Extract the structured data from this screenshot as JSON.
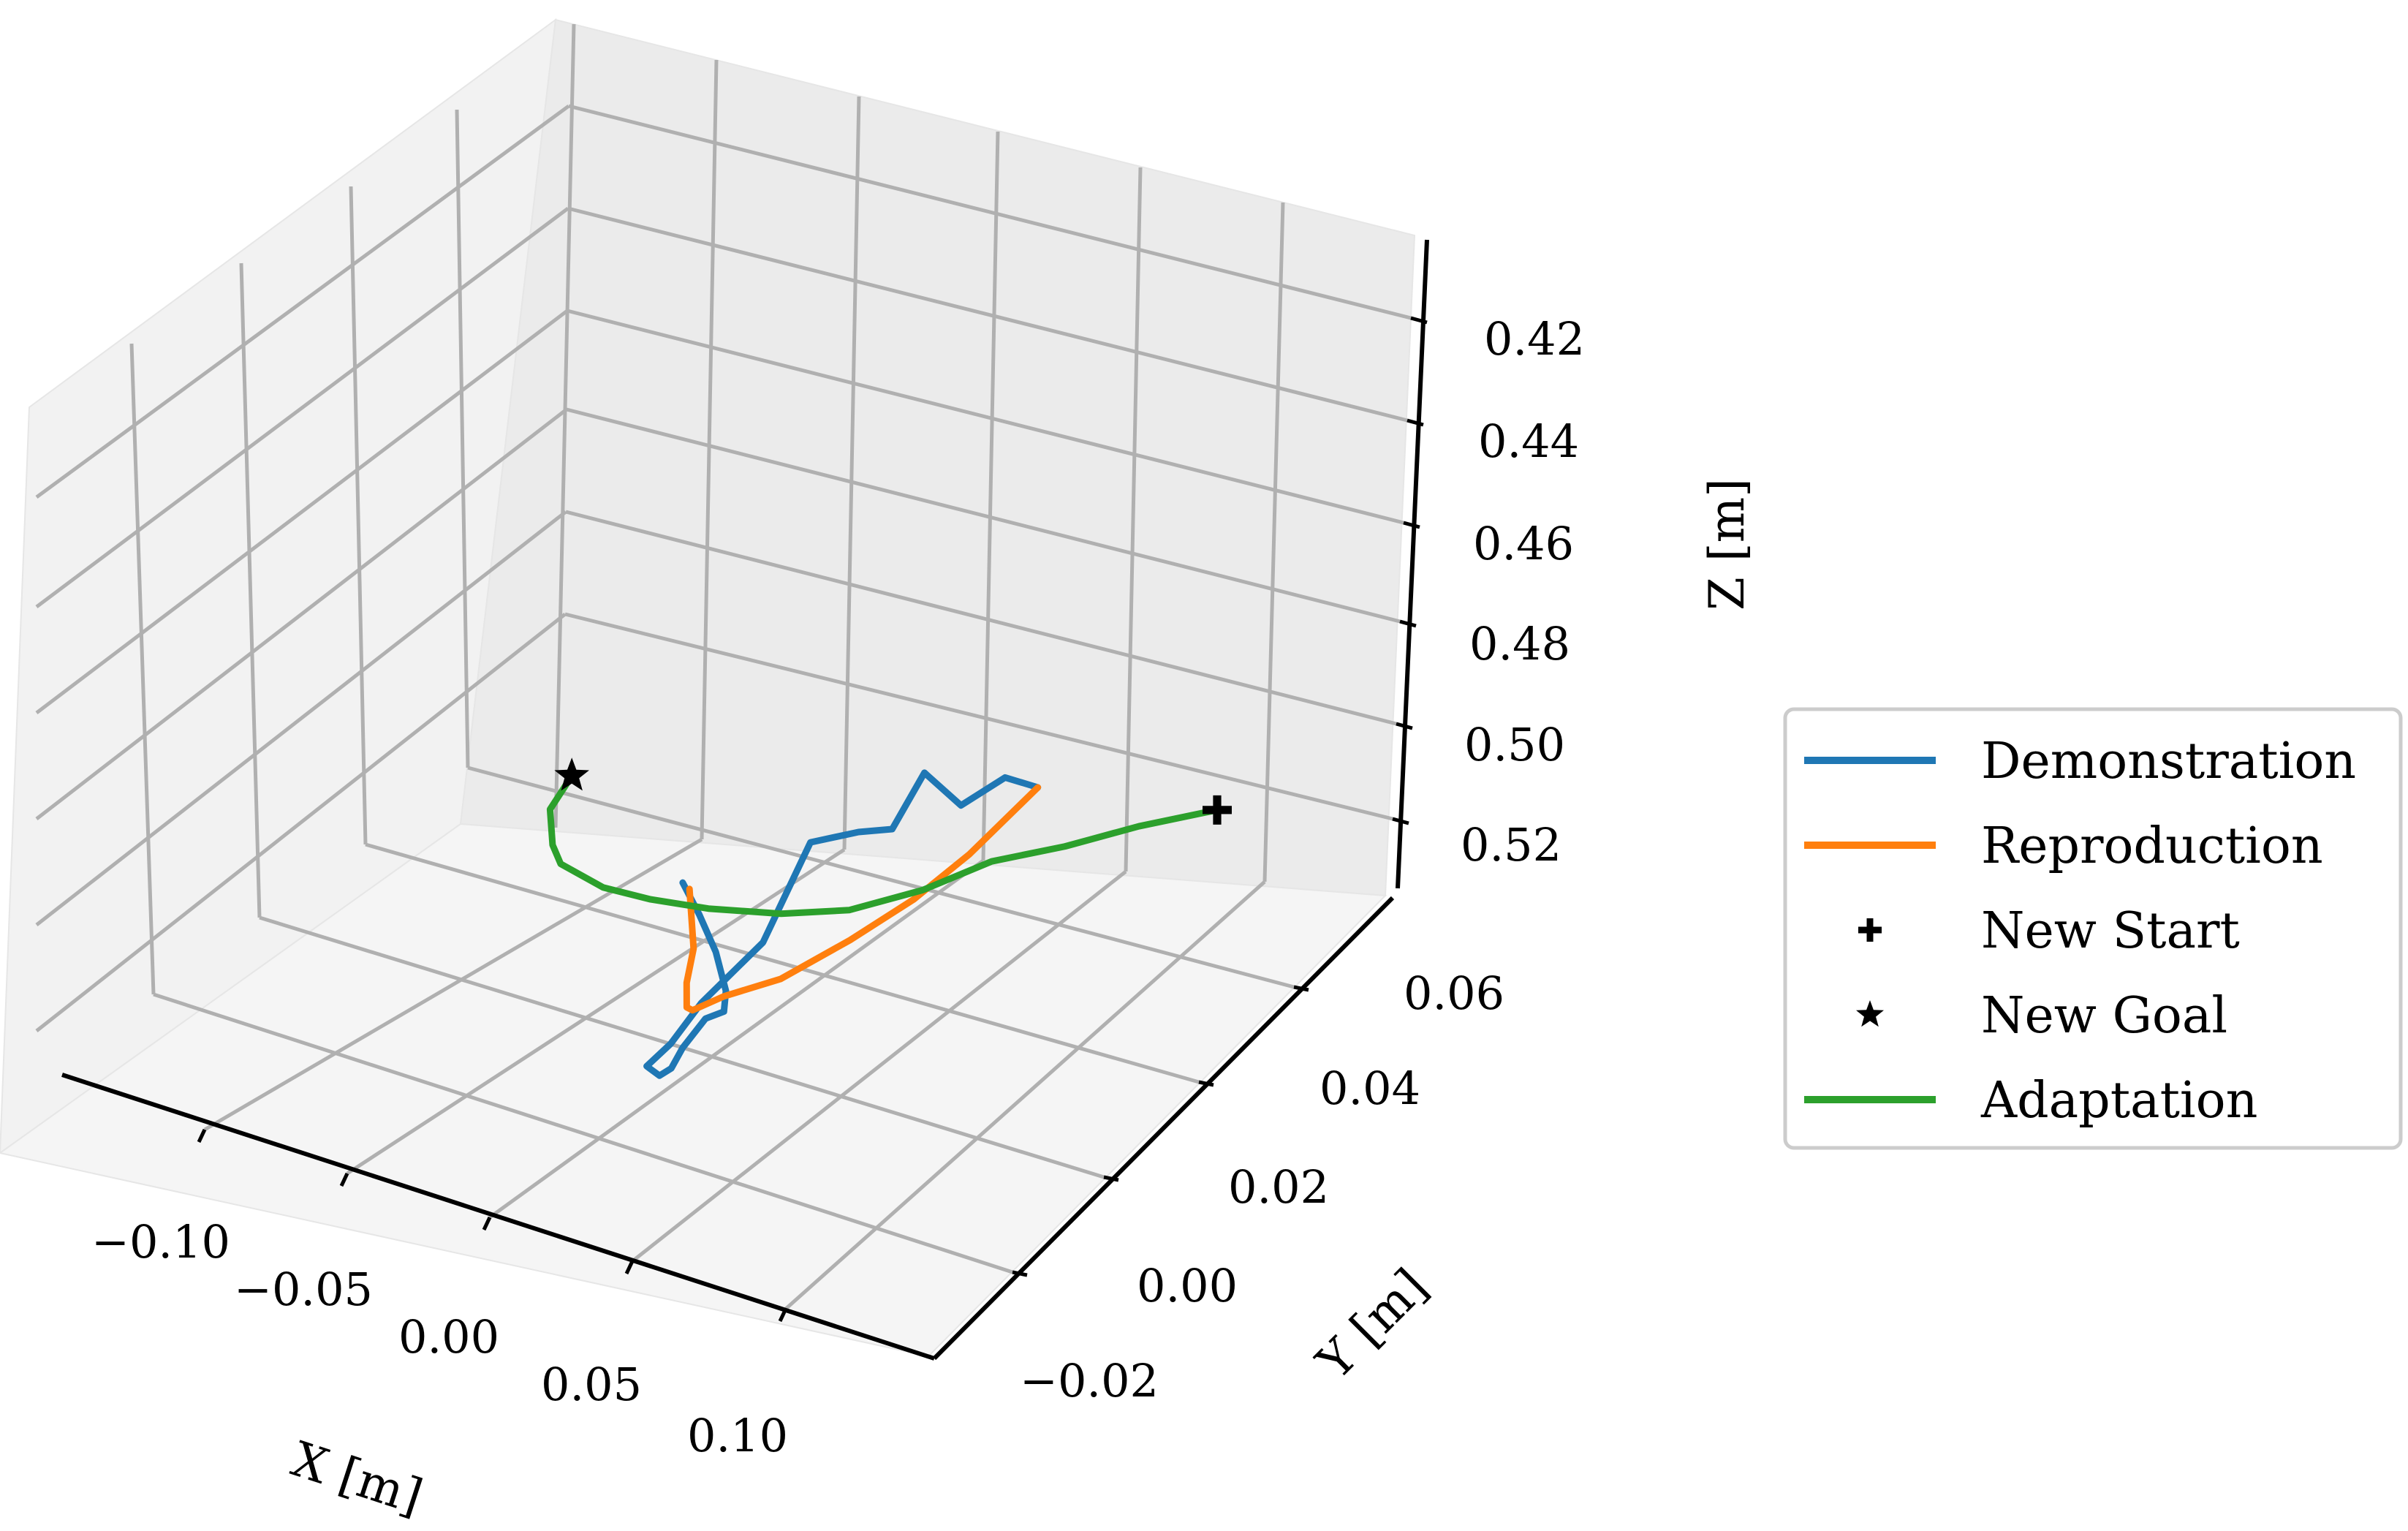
{
  "chart_data": {
    "type": "line",
    "projection": "3d",
    "title": "",
    "xlabel": "X [m]",
    "ylabel": "Y [m]",
    "zlabel": "Z [m]",
    "xlim": [
      -0.15,
      0.15
    ],
    "ylim": [
      -0.03,
      0.07
    ],
    "zlim": [
      0.53,
      0.41
    ],
    "z_axis_inverted": true,
    "x_ticks": [
      "−0.10",
      "−0.05",
      "0.00",
      "0.05",
      "0.10"
    ],
    "y_ticks": [
      "−0.02",
      "0.00",
      "0.02",
      "0.04",
      "0.06"
    ],
    "z_ticks": [
      "0.42",
      "0.44",
      "0.46",
      "0.48",
      "0.50",
      "0.52"
    ],
    "grid": true,
    "legend_position": "right",
    "series": [
      {
        "name": "Demonstration",
        "color": "#1f77b4",
        "kind": "line",
        "points": [
          [
            -0.056,
            0.016,
            0.456
          ],
          [
            -0.055,
            0.013,
            0.452
          ],
          [
            -0.054,
            0.01,
            0.447
          ],
          [
            -0.05,
            0.01,
            0.44
          ],
          [
            -0.047,
            0.012,
            0.435
          ],
          [
            -0.043,
            0.018,
            0.43
          ],
          [
            -0.03,
            0.03,
            0.418
          ],
          [
            -0.02,
            0.038,
            0.41
          ],
          [
            -0.012,
            0.045,
            0.405
          ],
          [
            -0.008,
            0.05,
            0.404
          ],
          [
            0.0,
            0.05,
            0.41
          ],
          [
            0.01,
            0.05,
            0.42
          ],
          [
            0.022,
            0.045,
            0.438
          ],
          [
            0.032,
            0.042,
            0.462
          ],
          [
            0.045,
            0.04,
            0.468
          ],
          [
            0.06,
            0.042,
            0.47
          ],
          [
            0.067,
            0.04,
            0.484
          ],
          [
            0.08,
            0.04,
            0.48
          ],
          [
            0.088,
            0.036,
            0.49
          ],
          [
            0.096,
            0.034,
            0.491
          ]
        ]
      },
      {
        "name": "Reproduction",
        "color": "#ff7f0e",
        "kind": "line",
        "points": [
          [
            -0.057,
            0.014,
            0.456
          ],
          [
            -0.048,
            0.018,
            0.443
          ],
          [
            -0.038,
            0.025,
            0.433
          ],
          [
            -0.024,
            0.033,
            0.425
          ],
          [
            -0.01,
            0.04,
            0.422
          ],
          [
            0.004,
            0.042,
            0.426
          ],
          [
            0.02,
            0.04,
            0.434
          ],
          [
            0.04,
            0.038,
            0.447
          ],
          [
            0.058,
            0.036,
            0.46
          ],
          [
            0.075,
            0.035,
            0.473
          ],
          [
            0.096,
            0.034,
            0.491
          ]
        ]
      },
      {
        "name": "New Start",
        "color": "#000000",
        "kind": "marker",
        "marker": "plus",
        "points": [
          [
            0.1,
            0.0,
            0.512
          ]
        ]
      },
      {
        "name": "New Goal",
        "color": "#000000",
        "kind": "marker",
        "marker": "star",
        "points": [
          [
            -0.14,
            -0.01,
            0.48
          ]
        ]
      },
      {
        "name": "Adaptation",
        "color": "#2ca02c",
        "kind": "line",
        "points": [
          [
            -0.14,
            -0.01,
            0.48
          ],
          [
            -0.13,
            0.0,
            0.468
          ],
          [
            -0.115,
            0.008,
            0.458
          ],
          [
            -0.1,
            0.015,
            0.452
          ],
          [
            -0.08,
            0.018,
            0.449
          ],
          [
            -0.06,
            0.02,
            0.449
          ],
          [
            -0.04,
            0.02,
            0.451
          ],
          [
            -0.02,
            0.017,
            0.456
          ],
          [
            0.0,
            0.015,
            0.462
          ],
          [
            0.02,
            0.012,
            0.472
          ],
          [
            0.04,
            0.01,
            0.483
          ],
          [
            0.06,
            0.007,
            0.492
          ],
          [
            0.08,
            0.004,
            0.502
          ],
          [
            0.1,
            0.0,
            0.512
          ]
        ]
      }
    ]
  }
}
